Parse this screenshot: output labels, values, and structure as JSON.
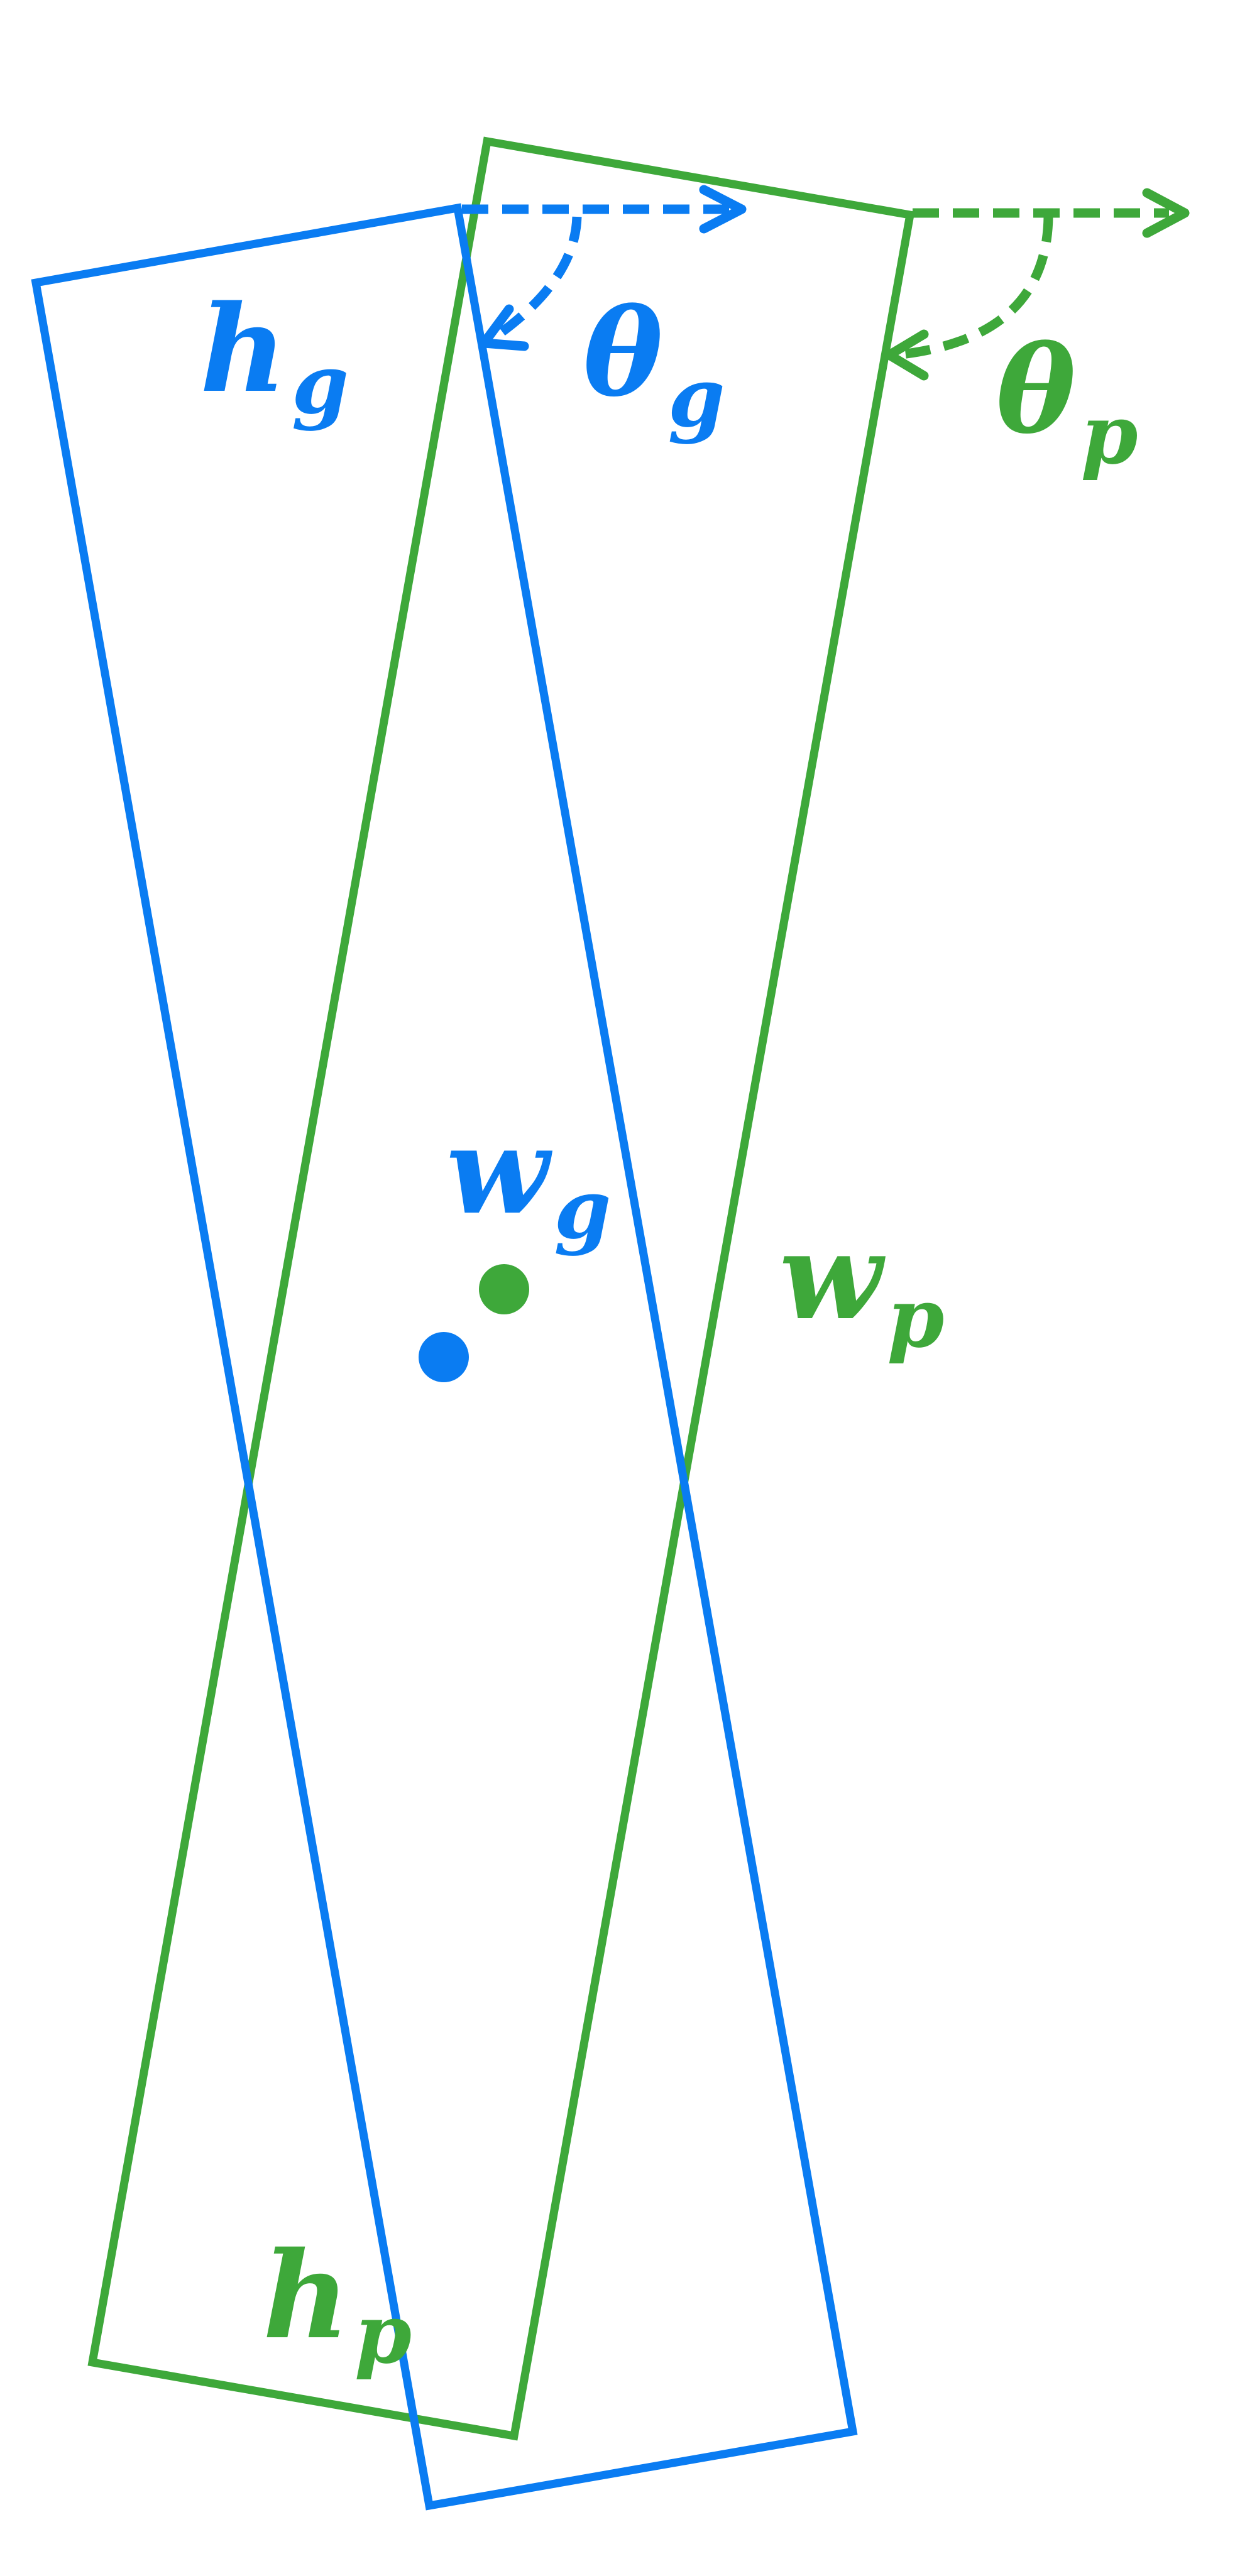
{
  "colors": {
    "gt": "#0a7cf2",
    "pred": "#3ea83a",
    "background": "#ffffff"
  },
  "labels": {
    "h_g": {
      "main": "h",
      "sub": "g"
    },
    "theta_g": {
      "main": "θ",
      "sub": "g"
    },
    "theta_p": {
      "main": "θ",
      "sub": "p"
    },
    "w_g": {
      "main": "w",
      "sub": "g"
    },
    "w_p": {
      "main": "w",
      "sub": "p"
    },
    "h_p": {
      "main": "h",
      "sub": "p"
    }
  }
}
